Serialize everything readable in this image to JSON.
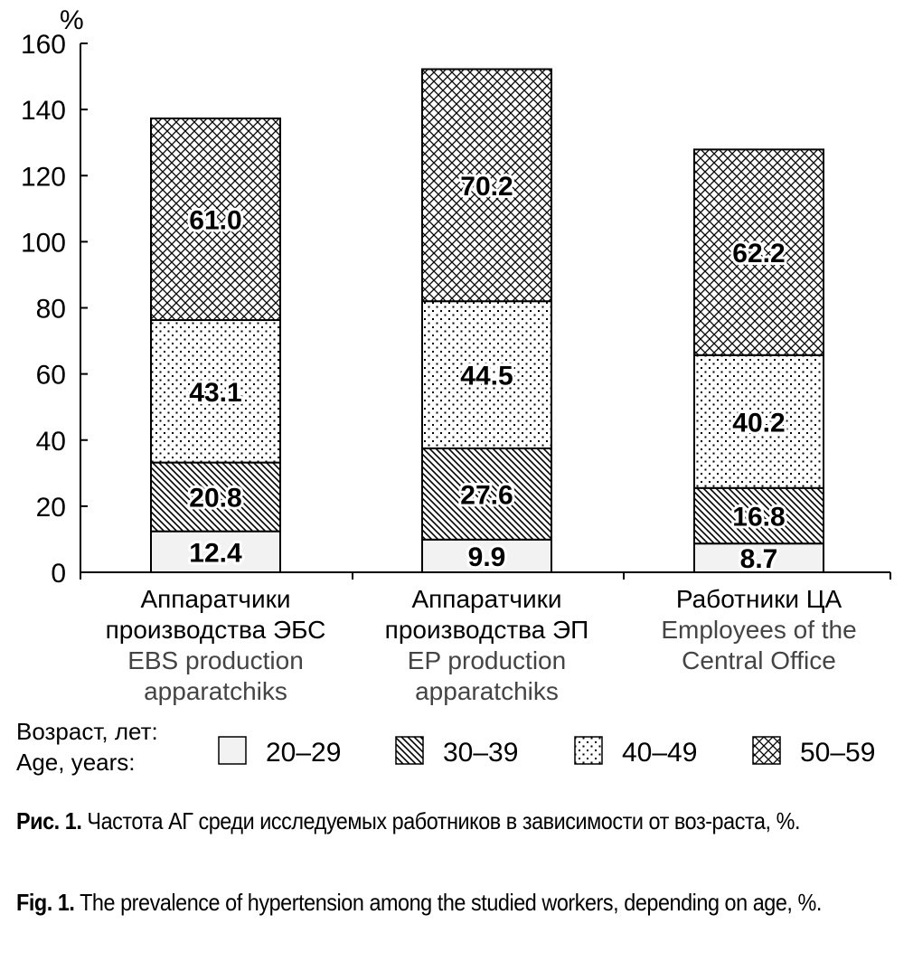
{
  "chart_data": {
    "type": "stacked-bar",
    "ylabel": "%",
    "ylim": [
      0,
      160
    ],
    "yticks": [
      0,
      20,
      40,
      60,
      80,
      100,
      120,
      140,
      160
    ],
    "categories": [
      {
        "ru": [
          "Аппаратчики",
          "производства ЭБС"
        ],
        "en": [
          "EBS production",
          "apparatchiks"
        ]
      },
      {
        "ru": [
          "Аппаратчики",
          "производства ЭП"
        ],
        "en": [
          "EP production",
          "apparatchiks"
        ]
      },
      {
        "ru": [
          "Работники ЦА"
        ],
        "en": [
          "Employees of the",
          "Central Office"
        ]
      }
    ],
    "series": [
      {
        "name": "20–29",
        "pattern": "plain",
        "values": [
          12.4,
          9.9,
          8.7
        ]
      },
      {
        "name": "30–39",
        "pattern": "diagonal",
        "values": [
          20.8,
          27.6,
          16.8
        ]
      },
      {
        "name": "40–49",
        "pattern": "dots",
        "values": [
          43.1,
          44.5,
          40.2
        ]
      },
      {
        "name": "50–59",
        "pattern": "crosshatch",
        "values": [
          61.0,
          70.2,
          62.2
        ]
      }
    ],
    "legend_title": [
      "Возраст, лет:",
      "Age, years:"
    ]
  },
  "caption_ru": {
    "label": "Рис. 1.",
    "text": " Частота АГ среди исследуемых работников в зависимости от воз-раста, %."
  },
  "caption_en": {
    "label": "Fig. 1.",
    "text": " The prevalence of hypertension among the studied workers, depending on age, %."
  }
}
